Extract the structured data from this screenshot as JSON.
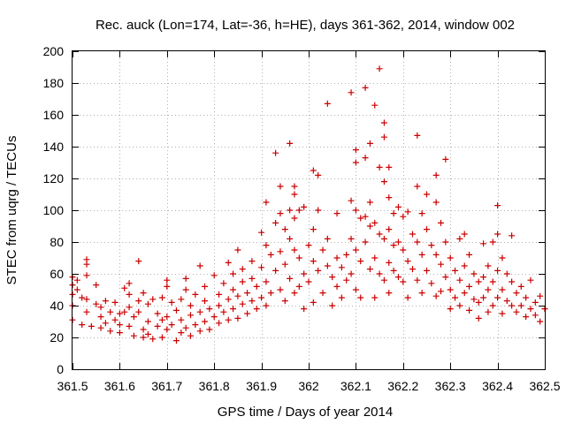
{
  "chart_data": {
    "type": "scatter",
    "title": "Rec. auck (Lon=174, Lat=-36, h=HE), days 361-362, 2014, window 002",
    "xlabel": "GPS time / Days of year 2014",
    "ylabel": "STEC from uqrg / TECUs",
    "xlim": [
      361.5,
      362.5
    ],
    "ylim": [
      0,
      200
    ],
    "xticks": [
      361.5,
      361.6,
      361.7,
      361.8,
      361.9,
      362.0,
      362.1,
      362.2,
      362.3,
      362.4,
      362.5
    ],
    "xtick_labels": [
      "361.5",
      "361.6",
      "361.7",
      "361.8",
      "361.9",
      "362",
      "362.1",
      "362.2",
      "362.3",
      "362.4",
      "362.5"
    ],
    "yticks": [
      0,
      20,
      40,
      60,
      80,
      100,
      120,
      140,
      160,
      180,
      200
    ],
    "ytick_labels": [
      "0",
      "20",
      "40",
      "60",
      "80",
      "100",
      "120",
      "140",
      "160",
      "180",
      "200"
    ],
    "grid": true,
    "marker": "+",
    "color": "#cc0000",
    "series": [
      {
        "name": "STEC",
        "points": [
          [
            361.5,
            58
          ],
          [
            361.5,
            53
          ],
          [
            361.5,
            47
          ],
          [
            361.5,
            40
          ],
          [
            361.5,
            31
          ],
          [
            361.51,
            50
          ],
          [
            361.51,
            56
          ],
          [
            361.52,
            28
          ],
          [
            361.52,
            45
          ],
          [
            361.53,
            69
          ],
          [
            361.53,
            66
          ],
          [
            361.53,
            59
          ],
          [
            361.53,
            44
          ],
          [
            361.53,
            36
          ],
          [
            361.54,
            27
          ],
          [
            361.55,
            53
          ],
          [
            361.55,
            41
          ],
          [
            361.56,
            39
          ],
          [
            361.56,
            33
          ],
          [
            361.56,
            26
          ],
          [
            361.57,
            43
          ],
          [
            361.57,
            29
          ],
          [
            361.58,
            36
          ],
          [
            361.58,
            24
          ],
          [
            361.59,
            42
          ],
          [
            361.59,
            31
          ],
          [
            361.6,
            28
          ],
          [
            361.6,
            23
          ],
          [
            361.6,
            35
          ],
          [
            361.61,
            36
          ],
          [
            361.61,
            51
          ],
          [
            361.62,
            54
          ],
          [
            361.62,
            47
          ],
          [
            361.62,
            39
          ],
          [
            361.62,
            27
          ],
          [
            361.63,
            21
          ],
          [
            361.63,
            33
          ],
          [
            361.64,
            68
          ],
          [
            361.64,
            43
          ],
          [
            361.64,
            36
          ],
          [
            361.65,
            20
          ],
          [
            361.65,
            25
          ],
          [
            361.65,
            48
          ],
          [
            361.66,
            22
          ],
          [
            361.66,
            30
          ],
          [
            361.66,
            41
          ],
          [
            361.67,
            44
          ],
          [
            361.67,
            19
          ],
          [
            361.68,
            27
          ],
          [
            361.68,
            35
          ],
          [
            361.69,
            31
          ],
          [
            361.69,
            45
          ],
          [
            361.69,
            20
          ],
          [
            361.7,
            56
          ],
          [
            361.7,
            52
          ],
          [
            361.7,
            33
          ],
          [
            361.7,
            25
          ],
          [
            361.71,
            42
          ],
          [
            361.71,
            28
          ],
          [
            361.72,
            18
          ],
          [
            361.72,
            37
          ],
          [
            361.73,
            23
          ],
          [
            361.73,
            31
          ],
          [
            361.73,
            44
          ],
          [
            361.74,
            57
          ],
          [
            361.74,
            50
          ],
          [
            361.74,
            26
          ],
          [
            361.75,
            34
          ],
          [
            361.75,
            21
          ],
          [
            361.75,
            40
          ],
          [
            361.76,
            47
          ],
          [
            361.76,
            28
          ],
          [
            361.77,
            65
          ],
          [
            361.77,
            36
          ],
          [
            361.77,
            24
          ],
          [
            361.78,
            52
          ],
          [
            361.78,
            43
          ],
          [
            361.78,
            30
          ],
          [
            361.79,
            25
          ],
          [
            361.79,
            38
          ],
          [
            361.8,
            59
          ],
          [
            361.8,
            33
          ],
          [
            361.81,
            47
          ],
          [
            361.81,
            29
          ],
          [
            361.81,
            40
          ],
          [
            361.82,
            54
          ],
          [
            361.82,
            36
          ],
          [
            361.83,
            67
          ],
          [
            361.83,
            44
          ],
          [
            361.83,
            31
          ],
          [
            361.84,
            60
          ],
          [
            361.84,
            50
          ],
          [
            361.84,
            38
          ],
          [
            361.85,
            75
          ],
          [
            361.85,
            46
          ],
          [
            361.85,
            32
          ],
          [
            361.86,
            63
          ],
          [
            361.86,
            55
          ],
          [
            361.86,
            41
          ],
          [
            361.87,
            48
          ],
          [
            361.87,
            35
          ],
          [
            361.88,
            68
          ],
          [
            361.88,
            57
          ],
          [
            361.88,
            43
          ],
          [
            361.89,
            52
          ],
          [
            361.89,
            38
          ],
          [
            361.9,
            86
          ],
          [
            361.9,
            64
          ],
          [
            361.9,
            45
          ],
          [
            361.91,
            105
          ],
          [
            361.91,
            78
          ],
          [
            361.91,
            55
          ],
          [
            361.91,
            40
          ],
          [
            361.92,
            72
          ],
          [
            361.92,
            48
          ],
          [
            361.93,
            136
          ],
          [
            361.93,
            92
          ],
          [
            361.93,
            62
          ],
          [
            361.94,
            115
          ],
          [
            361.94,
            98
          ],
          [
            361.94,
            74
          ],
          [
            361.94,
            50
          ],
          [
            361.95,
            88
          ],
          [
            361.95,
            66
          ],
          [
            361.95,
            43
          ],
          [
            361.96,
            142
          ],
          [
            361.96,
            100
          ],
          [
            361.96,
            82
          ],
          [
            361.96,
            57
          ],
          [
            361.97,
            115
          ],
          [
            361.97,
            110
          ],
          [
            361.97,
            95
          ],
          [
            361.97,
            75
          ],
          [
            361.97,
            48
          ],
          [
            361.98,
            100
          ],
          [
            361.98,
            70
          ],
          [
            361.98,
            52
          ],
          [
            361.99,
            102
          ],
          [
            361.99,
            60
          ],
          [
            361.99,
            38
          ],
          [
            362.0,
            78
          ],
          [
            362.0,
            55
          ],
          [
            362.01,
            125
          ],
          [
            362.01,
            88
          ],
          [
            362.01,
            68
          ],
          [
            362.01,
            42
          ],
          [
            362.02,
            122
          ],
          [
            362.02,
            100
          ],
          [
            362.02,
            62
          ],
          [
            362.03,
            75
          ],
          [
            362.03,
            48
          ],
          [
            362.04,
            167
          ],
          [
            362.04,
            82
          ],
          [
            362.04,
            65
          ],
          [
            362.05,
            58
          ],
          [
            362.05,
            40
          ],
          [
            362.06,
            98
          ],
          [
            362.06,
            70
          ],
          [
            362.06,
            52
          ],
          [
            362.07,
            64
          ],
          [
            362.07,
            45
          ],
          [
            362.08,
            72
          ],
          [
            362.08,
            56
          ],
          [
            362.09,
            174
          ],
          [
            362.09,
            106
          ],
          [
            362.09,
            82
          ],
          [
            362.09,
            60
          ],
          [
            362.1,
            130
          ],
          [
            362.1,
            138
          ],
          [
            362.1,
            100
          ],
          [
            362.1,
            75
          ],
          [
            362.1,
            50
          ],
          [
            362.11,
            95
          ],
          [
            362.11,
            68
          ],
          [
            362.11,
            45
          ],
          [
            362.12,
            177
          ],
          [
            362.12,
            133
          ],
          [
            362.12,
            96
          ],
          [
            362.12,
            80
          ],
          [
            362.13,
            142
          ],
          [
            362.13,
            105
          ],
          [
            362.13,
            90
          ],
          [
            362.13,
            63
          ],
          [
            362.14,
            166
          ],
          [
            362.14,
            92
          ],
          [
            362.14,
            70
          ],
          [
            362.14,
            45
          ],
          [
            362.15,
            189
          ],
          [
            362.15,
            127
          ],
          [
            362.15,
            85
          ],
          [
            362.15,
            60
          ],
          [
            362.16,
            155
          ],
          [
            362.16,
            146
          ],
          [
            362.16,
            118
          ],
          [
            362.16,
            82
          ],
          [
            362.16,
            56
          ],
          [
            362.17,
            127
          ],
          [
            362.17,
            108
          ],
          [
            362.17,
            88
          ],
          [
            362.17,
            67
          ],
          [
            362.17,
            48
          ],
          [
            362.18,
            98
          ],
          [
            362.18,
            78
          ],
          [
            362.18,
            62
          ],
          [
            362.19,
            102
          ],
          [
            362.19,
            80
          ],
          [
            362.19,
            58
          ],
          [
            362.2,
            96
          ],
          [
            362.2,
            75
          ],
          [
            362.2,
            55
          ],
          [
            362.21,
            99
          ],
          [
            362.21,
            68
          ],
          [
            362.21,
            45
          ],
          [
            362.22,
            85
          ],
          [
            362.22,
            63
          ],
          [
            362.23,
            147
          ],
          [
            362.23,
            115
          ],
          [
            362.23,
            80
          ],
          [
            362.23,
            56
          ],
          [
            362.24,
            98
          ],
          [
            362.24,
            72
          ],
          [
            362.24,
            48
          ],
          [
            362.25,
            110
          ],
          [
            362.25,
            88
          ],
          [
            362.25,
            62
          ],
          [
            362.26,
            78
          ],
          [
            362.26,
            54
          ],
          [
            362.27,
            122
          ],
          [
            362.27,
            105
          ],
          [
            362.27,
            72
          ],
          [
            362.27,
            46
          ],
          [
            362.28,
            92
          ],
          [
            362.28,
            66
          ],
          [
            362.28,
            49
          ],
          [
            362.29,
            132
          ],
          [
            362.29,
            80
          ],
          [
            362.29,
            58
          ],
          [
            362.3,
            70
          ],
          [
            362.3,
            50
          ],
          [
            362.3,
            38
          ],
          [
            362.31,
            62
          ],
          [
            362.31,
            45
          ],
          [
            362.32,
            82
          ],
          [
            362.32,
            56
          ],
          [
            362.32,
            40
          ],
          [
            362.33,
            85
          ],
          [
            362.33,
            65
          ],
          [
            362.33,
            48
          ],
          [
            362.34,
            72
          ],
          [
            362.34,
            52
          ],
          [
            362.34,
            37
          ],
          [
            362.35,
            60
          ],
          [
            362.35,
            44
          ],
          [
            362.36,
            55
          ],
          [
            362.36,
            42
          ],
          [
            362.36,
            32
          ],
          [
            362.37,
            79
          ],
          [
            362.37,
            58
          ],
          [
            362.37,
            45
          ],
          [
            362.38,
            65
          ],
          [
            362.38,
            50
          ],
          [
            362.38,
            36
          ],
          [
            362.39,
            80
          ],
          [
            362.39,
            55
          ],
          [
            362.39,
            40
          ],
          [
            362.4,
            103
          ],
          [
            362.4,
            85
          ],
          [
            362.4,
            62
          ],
          [
            362.4,
            45
          ],
          [
            362.41,
            70
          ],
          [
            362.41,
            50
          ],
          [
            362.41,
            35
          ],
          [
            362.42,
            60
          ],
          [
            362.42,
            43
          ],
          [
            362.43,
            84
          ],
          [
            362.43,
            55
          ],
          [
            362.43,
            40
          ],
          [
            362.44,
            48
          ],
          [
            362.44,
            36
          ],
          [
            362.45,
            52
          ],
          [
            362.45,
            40
          ],
          [
            362.46,
            45
          ],
          [
            362.46,
            33
          ],
          [
            362.47,
            56
          ],
          [
            362.47,
            38
          ],
          [
            362.48,
            42
          ],
          [
            362.48,
            34
          ],
          [
            362.49,
            46
          ],
          [
            362.49,
            30
          ],
          [
            362.5,
            38
          ]
        ]
      }
    ]
  }
}
